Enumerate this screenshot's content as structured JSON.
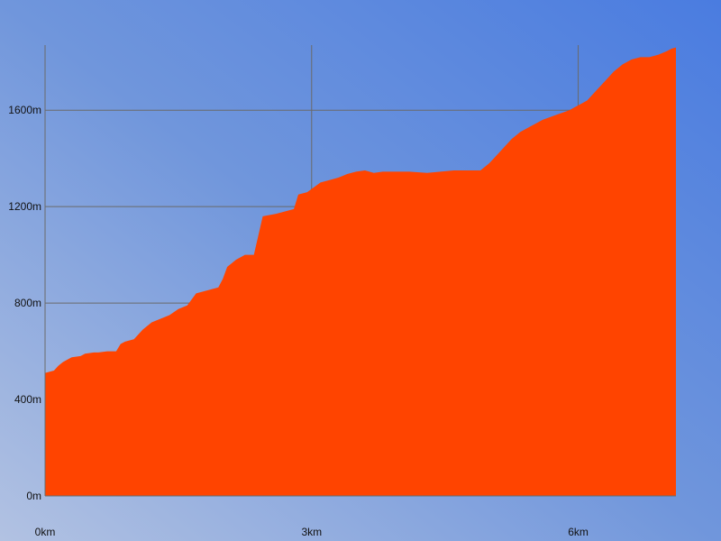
{
  "chart_data": {
    "type": "area",
    "title": "",
    "xlabel": "",
    "ylabel": "",
    "xlim": [
      0,
      7.1
    ],
    "ylim": [
      0,
      1870
    ],
    "x_ticks": [
      {
        "value": 0,
        "label": "0km"
      },
      {
        "value": 3,
        "label": "3km"
      },
      {
        "value": 6,
        "label": "6km"
      }
    ],
    "y_ticks": [
      {
        "value": 0,
        "label": "0m"
      },
      {
        "value": 400,
        "label": "400m"
      },
      {
        "value": 800,
        "label": "800m"
      },
      {
        "value": 1200,
        "label": "1200m"
      },
      {
        "value": 1600,
        "label": "1600m"
      }
    ],
    "grid": true,
    "series": [
      {
        "x": [
          0,
          0.1,
          0.15,
          0.2,
          0.25,
          0.3,
          0.4,
          0.45,
          0.55,
          0.6,
          0.7,
          0.8,
          0.85,
          0.9,
          1.0,
          1.1,
          1.2,
          1.3,
          1.4,
          1.5,
          1.6,
          1.7,
          1.8,
          1.95,
          2.0,
          2.05,
          2.15,
          2.25,
          2.35,
          2.45,
          2.6,
          2.7,
          2.8,
          2.85,
          2.95,
          3.1,
          3.2,
          3.3,
          3.4,
          3.5,
          3.6,
          3.7,
          3.8,
          3.9,
          4.0,
          4.1,
          4.3,
          4.6,
          4.8,
          4.9,
          5.0,
          5.1,
          5.2,
          5.25,
          5.35,
          5.45,
          5.6,
          5.75,
          5.9,
          6.0,
          6.1,
          6.2,
          6.3,
          6.4,
          6.5,
          6.6,
          6.7,
          6.8,
          6.9,
          7.0,
          7.05,
          7.1
        ],
        "y": [
          510,
          520,
          540,
          555,
          565,
          575,
          580,
          590,
          595,
          595,
          600,
          600,
          630,
          640,
          650,
          690,
          720,
          735,
          750,
          775,
          790,
          840,
          850,
          865,
          900,
          950,
          980,
          1000,
          1000,
          1160,
          1170,
          1180,
          1190,
          1250,
          1260,
          1300,
          1310,
          1320,
          1335,
          1345,
          1350,
          1340,
          1345,
          1345,
          1345,
          1345,
          1340,
          1350,
          1350,
          1350,
          1380,
          1420,
          1460,
          1480,
          1510,
          1530,
          1560,
          1580,
          1600,
          1620,
          1640,
          1680,
          1720,
          1760,
          1790,
          1810,
          1820,
          1820,
          1830,
          1845,
          1855,
          1860
        ]
      }
    ]
  },
  "colors": {
    "area_fill": "#ff4400",
    "grid_line": "#6a6a6a",
    "bg_light": "#b2c2e2",
    "bg_dark": "#5080e0"
  }
}
